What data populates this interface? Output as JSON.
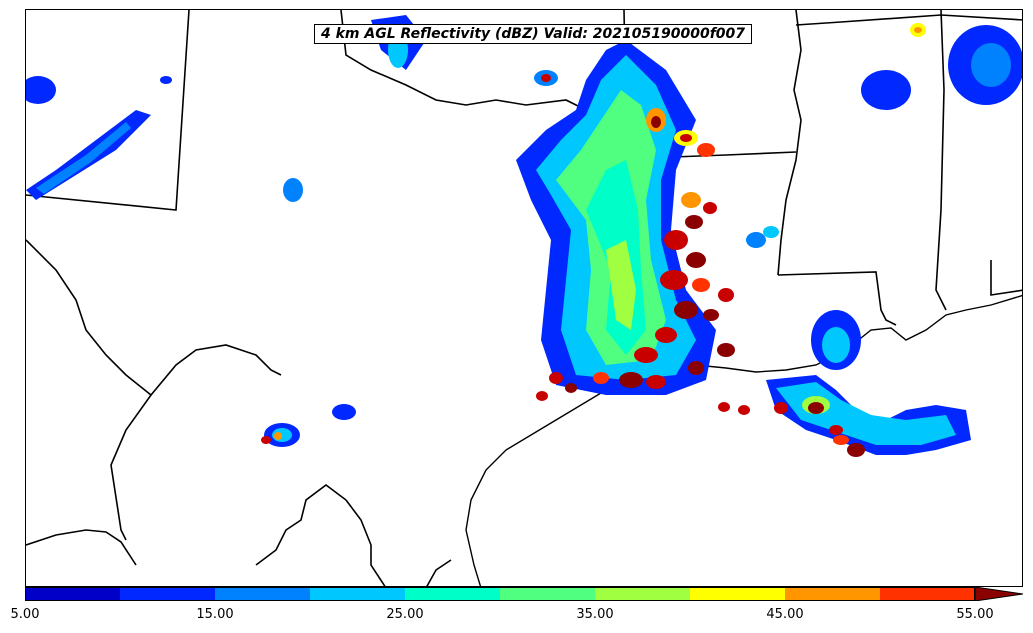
{
  "map": {
    "title": "4 km AGL Reflectivity (dBZ) Valid: 202105190000f007",
    "projection": "regional",
    "region": "Texas / Louisiana / Gulf Coast"
  },
  "colorbar": {
    "min": 5,
    "max": 55,
    "step": 5,
    "extend": "max",
    "tick_labels": [
      "5.00",
      "15.00",
      "25.00",
      "35.00",
      "45.00",
      "55.00"
    ],
    "colors": [
      "#0000c8",
      "#0028ff",
      "#0082ff",
      "#00c8ff",
      "#00ffc8",
      "#50ff80",
      "#a0ff40",
      "#ffff00",
      "#ff9600",
      "#ff3200",
      "#c80000",
      "#8b0000"
    ]
  }
}
